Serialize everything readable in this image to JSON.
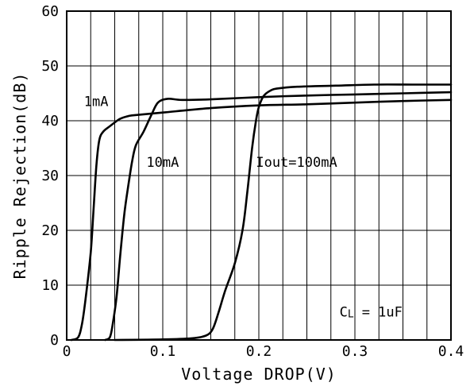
{
  "chart_data": {
    "type": "line",
    "xlabel": "Voltage DROP(V)",
    "ylabel": "Ripple Rejection(dB)",
    "xlim": [
      0,
      0.4
    ],
    "ylim": [
      0,
      60
    ],
    "xticks": [
      0,
      0.1,
      0.2,
      0.3,
      0.4
    ],
    "xtick_labels": [
      "0",
      "0.1",
      "0.2",
      "0.3",
      "0.4"
    ],
    "yticks": [
      0,
      10,
      20,
      30,
      40,
      50,
      60
    ],
    "ytick_labels": [
      "0",
      "10",
      "20",
      "30",
      "40",
      "50",
      "60"
    ],
    "grid": true,
    "series": [
      {
        "name": "1mA",
        "x": [
          0.005,
          0.012,
          0.016,
          0.02,
          0.025,
          0.028,
          0.031,
          0.034,
          0.038,
          0.045,
          0.055,
          0.063,
          0.07,
          0.1,
          0.15,
          0.2,
          0.25,
          0.3,
          0.35,
          0.4
        ],
        "y": [
          0,
          0.5,
          3,
          8,
          16,
          24,
          32,
          36.5,
          38,
          39,
          40.3,
          40.8,
          41,
          41.5,
          42.3,
          42.8,
          43,
          43.3,
          43.6,
          43.8
        ]
      },
      {
        "name": "10mA",
        "x": [
          0.04,
          0.045,
          0.048,
          0.052,
          0.056,
          0.06,
          0.064,
          0.068,
          0.072,
          0.08,
          0.088,
          0.095,
          0.105,
          0.12,
          0.15,
          0.2,
          0.25,
          0.3,
          0.35,
          0.4
        ],
        "y": [
          0,
          0.5,
          3,
          8,
          16,
          23,
          28,
          32.5,
          35.5,
          38,
          41,
          43.3,
          44,
          43.8,
          43.9,
          44.3,
          44.6,
          44.8,
          45,
          45.2
        ]
      },
      {
        "name": "Iout=100mA",
        "x": [
          0.05,
          0.1,
          0.13,
          0.145,
          0.152,
          0.158,
          0.165,
          0.175,
          0.183,
          0.188,
          0.193,
          0.197,
          0.2,
          0.205,
          0.212,
          0.22,
          0.24,
          0.28,
          0.32,
          0.36,
          0.4
        ],
        "y": [
          0,
          0.1,
          0.3,
          0.8,
          2,
          5,
          9,
          14,
          20,
          27,
          35,
          40,
          42.5,
          44.5,
          45.5,
          45.9,
          46.2,
          46.4,
          46.6,
          46.6,
          46.6
        ]
      }
    ],
    "annotations": [
      {
        "text": "1mA",
        "x": 0.018,
        "y": 42.7
      },
      {
        "text": "10mA",
        "x": 0.083,
        "y": 31.6
      },
      {
        "text": "Iout=100mA",
        "x": 0.197,
        "y": 31.6
      }
    ],
    "condition_label": {
      "symbol": "C",
      "subscript": "L",
      "rest": "= 1uF",
      "x": 0.284,
      "y": 4.3
    }
  }
}
